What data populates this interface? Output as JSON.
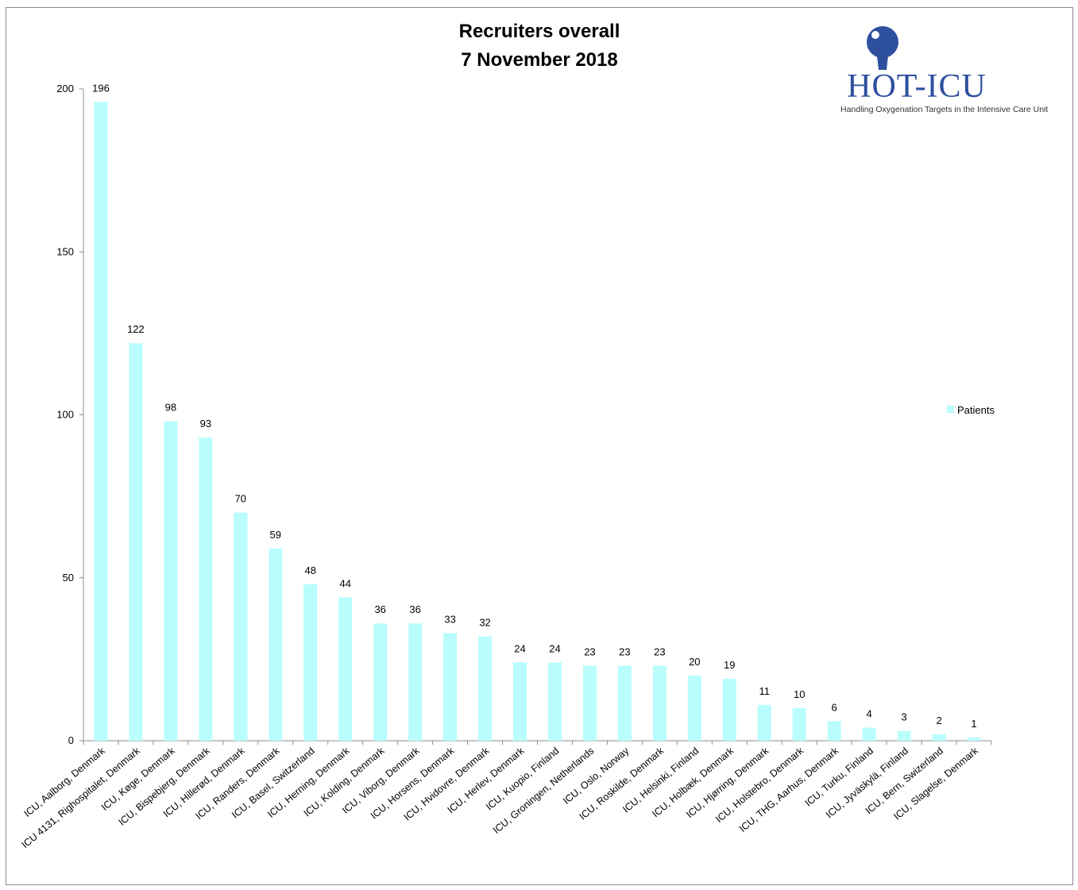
{
  "chart_data": {
    "type": "bar",
    "title": [
      "Recruiters overall",
      "7 November 2018"
    ],
    "xlabel": "",
    "ylabel": "",
    "ylim": [
      0,
      200
    ],
    "yticks": [
      0,
      50,
      100,
      150,
      200
    ],
    "grid": false,
    "legend_position": "right",
    "series": [
      {
        "name": "Patients",
        "color": "#b9fdfd",
        "values": [
          196,
          122,
          98,
          93,
          70,
          59,
          48,
          44,
          36,
          36,
          33,
          32,
          24,
          24,
          23,
          23,
          23,
          20,
          19,
          11,
          10,
          6,
          4,
          3,
          2,
          1
        ]
      }
    ],
    "categories": [
      "ICU, Aalborg, Denmark",
      "ICU 4131, Righospitalet, Denmark",
      "ICU, Køge, Denmark",
      "ICU, Bispebjerg, Denmark",
      "ICU, Hillerød, Denmark",
      "ICU, Randers, Denmark",
      "ICU, Basel, Switzerland",
      "ICU, Herning, Denmark",
      "ICU, Kolding, Denmark",
      "ICU, Viborg, Denmark",
      "ICU, Horsens, Denmark",
      "ICU, Hvidovre, Denmark",
      "ICU, Herlev, Denmark",
      "ICU, Kuopio, Finland",
      "ICU, Groningen, Netherlands",
      "ICU, Oslo, Norway",
      "ICU, Roskilde, Denmark",
      "ICU, Helsinki, Finland",
      "ICU, Holbæk, Denmark",
      "ICU, Hjørring, Denmark",
      "ICU, Holstebro, Denmark",
      "ICU, THG, Aarhus, Denmark",
      "ICU, Turku, Finland",
      "ICU, Jyväskylä, Finland",
      "ICU, Bern, Swizerland",
      "ICU, Slagelse, Denmark"
    ]
  },
  "logo": {
    "name": "HOT-ICU",
    "subtitle": "Handling Oxygenation Targets in the Intensive Care Unit",
    "color": "#2d4f9e"
  }
}
